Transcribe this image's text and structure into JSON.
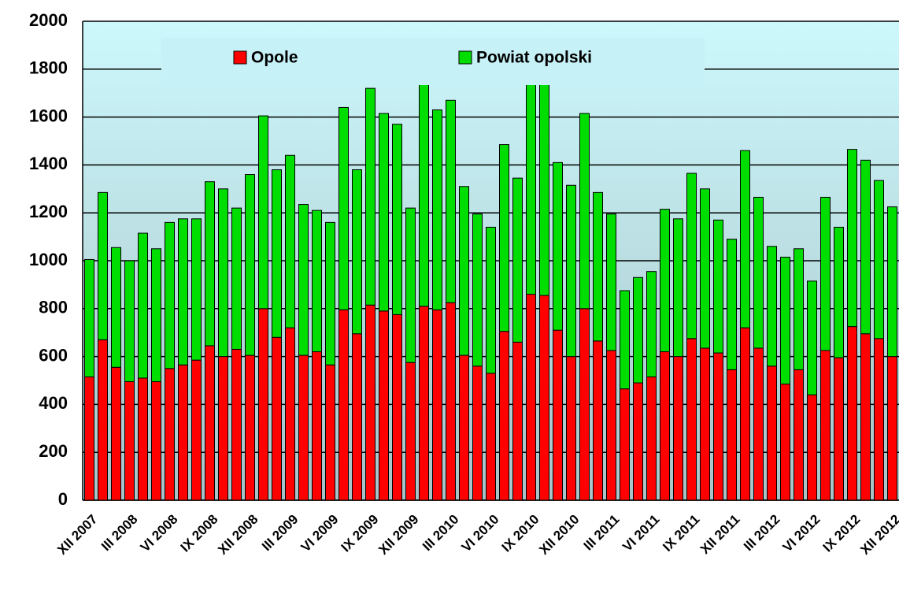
{
  "chart_data": {
    "type": "stacked_bar",
    "categories": [
      "XII 2007",
      null,
      null,
      "III 2008",
      null,
      null,
      "VI 2008",
      null,
      null,
      "IX 2008",
      null,
      null,
      "XII 2008",
      null,
      null,
      "III 2009",
      null,
      null,
      "VI 2009",
      null,
      null,
      "IX 2009",
      null,
      null,
      "XII 2009",
      null,
      null,
      "III 2010",
      null,
      null,
      "VI 2010",
      null,
      null,
      "IX 2010",
      null,
      null,
      "XII 2010",
      null,
      null,
      "III 2011",
      null,
      null,
      "VI 2011",
      null,
      null,
      "IX 2011",
      null,
      null,
      "XII 2011",
      null,
      null,
      "III 2012",
      null,
      null,
      "VI 2012",
      null,
      null,
      "IX 2012",
      null,
      null,
      "XII 2012"
    ],
    "series": [
      {
        "name": "Opole",
        "color": "#ff0000",
        "values": [
          515,
          670,
          555,
          495,
          510,
          495,
          550,
          565,
          585,
          645,
          600,
          630,
          605,
          800,
          680,
          720,
          605,
          620,
          565,
          795,
          695,
          815,
          790,
          775,
          575,
          810,
          795,
          825,
          605,
          560,
          530,
          705,
          660,
          860,
          855,
          710,
          600,
          800,
          665,
          625,
          465,
          490,
          515,
          620,
          600,
          675,
          635,
          615,
          545,
          720,
          635,
          560,
          485,
          545,
          440,
          625,
          595,
          725,
          695,
          675,
          600
        ]
      },
      {
        "name": "Powiat opolski",
        "color": "#00dd00",
        "values": [
          490,
          615,
          500,
          505,
          605,
          555,
          610,
          610,
          590,
          685,
          700,
          590,
          755,
          805,
          700,
          720,
          630,
          590,
          595,
          845,
          685,
          905,
          825,
          795,
          645,
          950,
          835,
          845,
          705,
          635,
          610,
          780,
          685,
          970,
          910,
          700,
          715,
          815,
          620,
          570,
          410,
          440,
          440,
          595,
          575,
          690,
          665,
          555,
          545,
          740,
          630,
          500,
          530,
          505,
          475,
          640,
          545,
          740,
          725,
          660,
          625
        ]
      }
    ],
    "ylim": [
      0,
      2000
    ],
    "yticks": [
      0,
      200,
      400,
      600,
      800,
      1000,
      1200,
      1400,
      1600,
      1800,
      2000
    ],
    "grid": true
  }
}
